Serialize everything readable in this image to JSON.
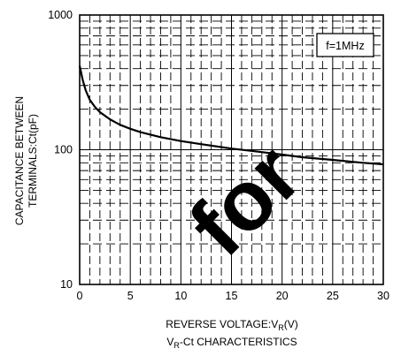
{
  "chart_data": {
    "type": "line",
    "title": "",
    "caption": "Vʀ-Ct CHARACTERISTICS",
    "caption_main": "V",
    "caption_sub": "R",
    "caption_rest": "-Ct CHARACTERISTICS",
    "xlabel_main": "REVERSE VOLTAGE:V",
    "xlabel_sub": "R",
    "xlabel_rest": "(V)",
    "ylabel_line1": "CAPACITANCE BETWEEN",
    "ylabel_line2": "TERMINALS:Ct(pF)",
    "annotation": "f=1MHz",
    "xlim": [
      0,
      30
    ],
    "ylim": [
      10,
      1000
    ],
    "y_scale": "log",
    "grid": true,
    "x_ticks": [
      "0",
      "5",
      "10",
      "15",
      "20",
      "25",
      "30"
    ],
    "y_ticks": [
      "10",
      "100",
      "1000"
    ],
    "watermark": "for",
    "series": [
      {
        "x": [
          0,
          0.3,
          0.6,
          1,
          1.5,
          2,
          3,
          4,
          5,
          6,
          8,
          10,
          12,
          15,
          18,
          20,
          22,
          25,
          28,
          30
        ],
        "y": [
          420,
          330,
          275,
          235,
          208,
          190,
          168,
          153,
          143,
          135,
          124,
          116,
          110,
          102,
          96,
          92,
          88,
          84,
          80,
          78
        ]
      }
    ]
  }
}
